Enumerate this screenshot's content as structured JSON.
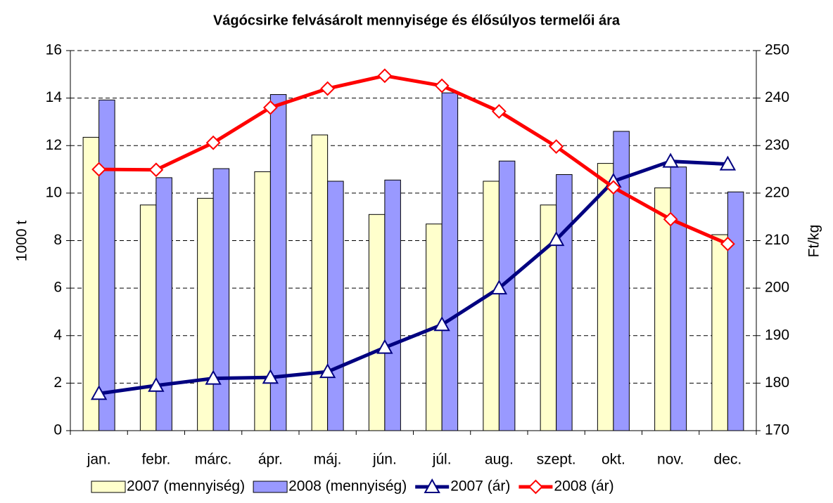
{
  "chart_data": {
    "type": "bar_line",
    "title": "Vágócsirke felvásárolt mennyisége és élősúlyos termelői ára",
    "ylabel": "1000 t",
    "y2label": "Ft/kg",
    "categories": [
      "jan.",
      "febr.",
      "márc.",
      "ápr.",
      "máj.",
      "jún.",
      "júl.",
      "aug.",
      "szept.",
      "okt.",
      "nov.",
      "dec."
    ],
    "series": [
      {
        "name": "2007 (mennyiség)",
        "type": "bar",
        "color": "#ffffcc",
        "values": [
          12.35,
          9.5,
          9.78,
          10.9,
          12.45,
          9.1,
          8.7,
          10.5,
          9.5,
          11.25,
          10.22,
          8.25
        ]
      },
      {
        "name": "2008 (mennyiség)",
        "type": "bar",
        "color": "#9999ff",
        "values": [
          13.92,
          10.65,
          11.03,
          14.15,
          10.5,
          10.55,
          14.22,
          11.35,
          10.78,
          12.6,
          11.1,
          10.05
        ]
      },
      {
        "name": "2007 (ár)",
        "type": "line",
        "axis": "y2",
        "color": "#000080",
        "marker": "triangle",
        "values": [
          177.8,
          179.5,
          181,
          181.2,
          182.4,
          187.5,
          192.3,
          200,
          210.2,
          222.5,
          226.7,
          226.1
        ]
      },
      {
        "name": "2008 (ár)",
        "type": "line",
        "axis": "y2",
        "color": "#ff0000",
        "marker": "diamond",
        "values": [
          225,
          224.9,
          230.6,
          238,
          242,
          244.7,
          242.6,
          237.2,
          229.8,
          221.2,
          214.5,
          209.3
        ]
      }
    ],
    "ylim": [
      0,
      16
    ],
    "yticks": [
      0,
      2,
      4,
      6,
      8,
      10,
      12,
      14,
      16
    ],
    "y2lim": [
      170,
      250
    ],
    "y2ticks": [
      170,
      180,
      190,
      200,
      210,
      220,
      230,
      240,
      250
    ],
    "grid": true,
    "legend": "bottom"
  }
}
